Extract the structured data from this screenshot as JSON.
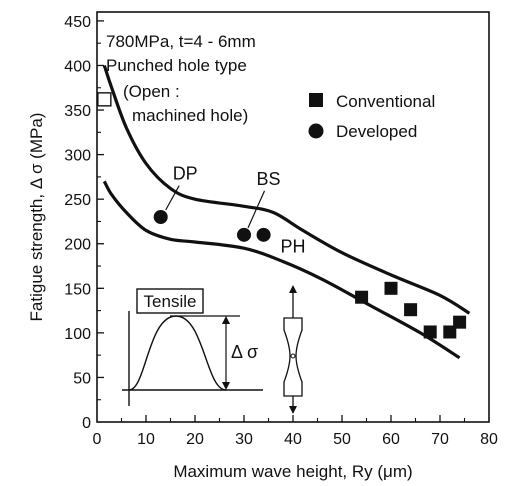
{
  "chart_data": {
    "type": "scatter",
    "title": "",
    "xlabel": "Maximum wave height, Ry (μm)",
    "ylabel": "Fatigue strength, Δ σ (MPa)",
    "xlim": [
      0,
      80
    ],
    "ylim": [
      0,
      460
    ],
    "x_ticks": [
      "0",
      "10",
      "20",
      "30",
      "40",
      "50",
      "60",
      "70",
      "80"
    ],
    "y_ticks": [
      "0",
      "50",
      "100",
      "150",
      "200",
      "250",
      "300",
      "350",
      "400",
      "450"
    ],
    "grid": false,
    "annotations": [
      "780MPa, t=4 - 6mm",
      "Punched hole type",
      "(Open :",
      "machined hole)"
    ],
    "legend": {
      "position": "top-right",
      "entries": [
        {
          "label": "Conventional",
          "marker": "square"
        },
        {
          "label": "Developed",
          "marker": "circle"
        }
      ]
    },
    "series": [
      {
        "name": "Conventional",
        "marker": "square",
        "points": [
          [
            54,
            140
          ],
          [
            60,
            150
          ],
          [
            64,
            126
          ],
          [
            68,
            101
          ],
          [
            72,
            101
          ],
          [
            74,
            112
          ]
        ]
      },
      {
        "name": "Developed",
        "marker": "circle",
        "points": [
          [
            13,
            230
          ],
          [
            30,
            210
          ],
          [
            34,
            210
          ]
        ]
      },
      {
        "name": "Open",
        "marker": "open-square",
        "points": [
          [
            1.5,
            362
          ]
        ]
      }
    ],
    "point_labels": [
      {
        "text": "DP",
        "x": 18,
        "y": 272
      },
      {
        "text": "BS",
        "x": 35,
        "y": 266
      },
      {
        "text": "PH",
        "x": 40,
        "y": 190
      }
    ],
    "band": {
      "upper": [
        [
          1.5,
          400
        ],
        [
          3,
          375
        ],
        [
          6,
          330
        ],
        [
          10,
          290
        ],
        [
          15,
          262
        ],
        [
          20,
          250
        ],
        [
          30,
          242
        ],
        [
          36,
          235
        ],
        [
          42,
          215
        ],
        [
          50,
          190
        ],
        [
          60,
          165
        ],
        [
          70,
          142
        ],
        [
          76,
          122
        ]
      ],
      "lower": [
        [
          1.5,
          270
        ],
        [
          3,
          255
        ],
        [
          6,
          235
        ],
        [
          10,
          215
        ],
        [
          15,
          205
        ],
        [
          20,
          202
        ],
        [
          30,
          195
        ],
        [
          38,
          180
        ],
        [
          46,
          160
        ],
        [
          56,
          130
        ],
        [
          66,
          100
        ],
        [
          74,
          72
        ]
      ]
    },
    "inset": {
      "label": "Tensile",
      "delta_label": "Δ σ"
    }
  }
}
